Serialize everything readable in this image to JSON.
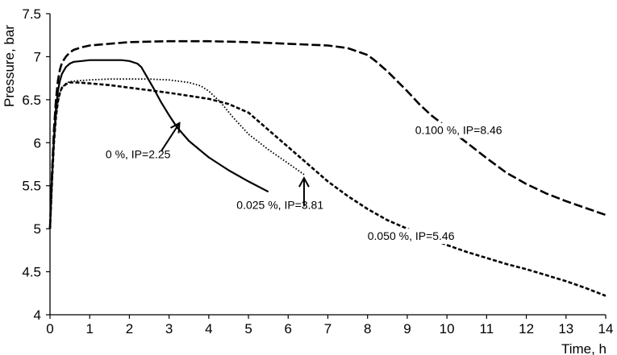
{
  "chart_data": {
    "type": "line",
    "title": "",
    "xlabel": "Time, h",
    "ylabel": "Pressure, bar",
    "xlim": [
      0,
      14
    ],
    "ylim": [
      4,
      7.5
    ],
    "xticks": [
      "0",
      "1",
      "2",
      "3",
      "4",
      "5",
      "6",
      "7",
      "8",
      "9",
      "10",
      "11",
      "12",
      "13",
      "14"
    ],
    "yticks": [
      "4",
      "4.5",
      "5",
      "5.5",
      "6",
      "6.5",
      "7",
      "7.5"
    ],
    "grid": false,
    "legend": "none",
    "series": [
      {
        "style": "solid",
        "x": [
          0,
          0.05,
          0.1,
          0.15,
          0.2,
          0.25,
          0.3,
          0.4,
          0.5,
          0.6,
          0.8,
          1.0,
          1.2,
          1.5,
          1.8,
          2.0,
          2.2,
          2.3,
          2.4,
          2.6,
          2.8,
          3.0,
          3.2,
          3.5,
          4.0,
          4.5,
          5.0,
          5.5
        ],
        "y": [
          5.0,
          5.6,
          6.05,
          6.4,
          6.6,
          6.72,
          6.8,
          6.88,
          6.92,
          6.94,
          6.95,
          6.96,
          6.96,
          6.96,
          6.96,
          6.95,
          6.92,
          6.88,
          6.8,
          6.64,
          6.47,
          6.32,
          6.18,
          6.02,
          5.83,
          5.68,
          5.55,
          5.43
        ]
      },
      {
        "style": "dotted",
        "x": [
          0,
          0.05,
          0.1,
          0.15,
          0.2,
          0.25,
          0.3,
          0.4,
          0.5,
          0.7,
          1.0,
          1.5,
          2.0,
          2.5,
          3.0,
          3.5,
          3.8,
          4.0,
          4.3,
          4.6,
          5.0,
          5.5,
          6.0,
          6.4
        ],
        "y": [
          5.0,
          5.55,
          6.0,
          6.3,
          6.48,
          6.58,
          6.64,
          6.69,
          6.71,
          6.72,
          6.73,
          6.74,
          6.74,
          6.74,
          6.73,
          6.7,
          6.66,
          6.6,
          6.47,
          6.3,
          6.1,
          5.92,
          5.76,
          5.63
        ]
      },
      {
        "style": "short-dash",
        "x": [
          0,
          0.05,
          0.1,
          0.15,
          0.2,
          0.25,
          0.3,
          0.4,
          0.5,
          0.7,
          1.0,
          1.5,
          2.0,
          3.0,
          4.0,
          4.5,
          5.0,
          5.5,
          6.0,
          6.5,
          7.0,
          7.5,
          8.0,
          8.5,
          9.0,
          9.5,
          10.0,
          10.5,
          11.0,
          11.5,
          12.0,
          12.5,
          13.0,
          13.5,
          14.0
        ],
        "y": [
          5.0,
          5.55,
          6.0,
          6.3,
          6.48,
          6.58,
          6.64,
          6.68,
          6.7,
          6.7,
          6.69,
          6.67,
          6.64,
          6.58,
          6.51,
          6.45,
          6.35,
          6.15,
          5.95,
          5.75,
          5.55,
          5.38,
          5.23,
          5.1,
          5.0,
          4.9,
          4.81,
          4.73,
          4.66,
          4.59,
          4.53,
          4.46,
          4.39,
          4.31,
          4.22
        ]
      },
      {
        "style": "long-dash",
        "x": [
          0,
          0.05,
          0.1,
          0.15,
          0.2,
          0.25,
          0.3,
          0.4,
          0.5,
          0.6,
          0.8,
          1.0,
          2.0,
          3.0,
          4.0,
          5.0,
          6.0,
          7.0,
          7.5,
          8.0,
          8.2,
          8.5,
          9.0,
          9.3,
          9.6,
          10.0,
          10.5,
          11.0,
          11.5,
          12.0,
          12.5,
          13.0,
          13.5,
          14.0
        ],
        "y": [
          5.0,
          5.65,
          6.15,
          6.5,
          6.72,
          6.85,
          6.93,
          7.0,
          7.05,
          7.08,
          7.11,
          7.13,
          7.17,
          7.18,
          7.18,
          7.17,
          7.15,
          7.13,
          7.1,
          7.02,
          6.95,
          6.83,
          6.6,
          6.45,
          6.32,
          6.18,
          6.0,
          5.82,
          5.65,
          5.52,
          5.41,
          5.32,
          5.24,
          5.16
        ]
      }
    ],
    "annotations": [
      {
        "text": "0 %, IP=2.25",
        "x": 1.4,
        "y": 5.82
      },
      {
        "text": "0.025 %, IP=3.81",
        "x": 4.7,
        "y": 5.23
      },
      {
        "text": "0.050 %, IP=5.46",
        "x": 8.0,
        "y": 4.87
      },
      {
        "text": "0.100 %, IP=8.46",
        "x": 9.2,
        "y": 6.1
      }
    ],
    "arrows": [
      {
        "from": [
          2.8,
          5.9
        ],
        "to": [
          3.25,
          6.22
        ]
      },
      {
        "from": [
          6.4,
          5.26
        ],
        "to": [
          6.4,
          5.58
        ]
      }
    ]
  }
}
